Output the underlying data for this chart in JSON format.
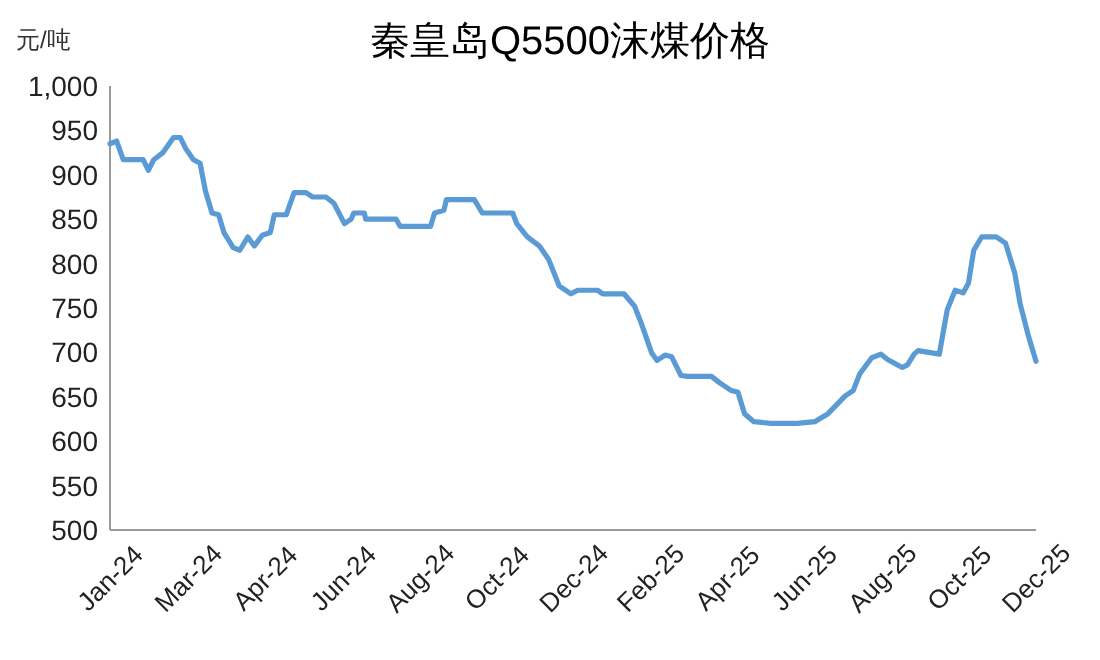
{
  "chart_data": {
    "type": "line",
    "title": "秦皇岛Q5500沫煤价格",
    "ylabel": "元/吨",
    "color": "#5b9bd5",
    "x": [
      "2024-01-02",
      "2024-01-07",
      "2024-01-12",
      "2024-01-27",
      "2024-01-31",
      "2024-02-04",
      "2024-02-11",
      "2024-02-19",
      "2024-02-24",
      "2024-02-28",
      "2024-03-05",
      "2024-03-10",
      "2024-03-14",
      "2024-03-19",
      "2024-03-24",
      "2024-03-28",
      "2024-04-04",
      "2024-04-09",
      "2024-04-15",
      "2024-04-20",
      "2024-04-26",
      "2024-05-02",
      "2024-05-05",
      "2024-05-14",
      "2024-05-20",
      "2024-05-29",
      "2024-06-03",
      "2024-06-13",
      "2024-06-19",
      "2024-06-27",
      "2024-07-02",
      "2024-07-04",
      "2024-07-12",
      "2024-07-13",
      "2024-08-05",
      "2024-08-08",
      "2024-08-31",
      "2024-09-03",
      "2024-09-10",
      "2024-09-12",
      "2024-10-03",
      "2024-10-09",
      "2024-11-01",
      "2024-11-04",
      "2024-11-12",
      "2024-11-21",
      "2024-11-28",
      "2024-12-06",
      "2024-12-15",
      "2024-12-20",
      "2025-01-04",
      "2025-01-08",
      "2025-01-24",
      "2025-02-01",
      "2025-02-06",
      "2025-02-14",
      "2025-02-18",
      "2025-02-24",
      "2025-03-01",
      "2025-03-08",
      "2025-03-13",
      "2025-03-31",
      "2025-04-06",
      "2025-04-15",
      "2025-04-20",
      "2025-04-25",
      "2025-05-02",
      "2025-05-15",
      "2025-06-04",
      "2025-06-17",
      "2025-06-27",
      "2025-07-10",
      "2025-07-16",
      "2025-07-21",
      "2025-07-30",
      "2025-08-06",
      "2025-08-11",
      "2025-08-22",
      "2025-08-26",
      "2025-08-31",
      "2025-09-03",
      "2025-09-19",
      "2025-09-25",
      "2025-10-01",
      "2025-10-07",
      "2025-10-11",
      "2025-10-15",
      "2025-10-21",
      "2025-11-01",
      "2025-11-08",
      "2025-11-15",
      "2025-11-19",
      "2025-11-25",
      "2025-12-01"
    ],
    "values": [
      935,
      938,
      917,
      917,
      905,
      917,
      925,
      942,
      942,
      930,
      917,
      913,
      882,
      857,
      855,
      835,
      818,
      815,
      830,
      820,
      832,
      835,
      855,
      855,
      880,
      880,
      875,
      875,
      868,
      845,
      850,
      857,
      857,
      850,
      850,
      842,
      842,
      857,
      860,
      872,
      872,
      857,
      857,
      845,
      830,
      820,
      805,
      775,
      766,
      770,
      770,
      766,
      766,
      752,
      733,
      699,
      691,
      697,
      695,
      674,
      673,
      673,
      666,
      657,
      655,
      631,
      622,
      620,
      620,
      622,
      631,
      651,
      657,
      676,
      694,
      698,
      692,
      683,
      686,
      698,
      702,
      698,
      748,
      770,
      767,
      778,
      815,
      830,
      830,
      823,
      789,
      755,
      720,
      690
    ],
    "xlim": [
      "2024-01-02",
      "2025-12-01"
    ],
    "xticks": [
      {
        "value": "2024-01-02",
        "label": "Jan-24"
      },
      {
        "value": "2024-03-01",
        "label": "Mar-24"
      },
      {
        "value": "2024-04-28",
        "label": "Apr-24"
      },
      {
        "value": "2024-06-26",
        "label": "Jun-24"
      },
      {
        "value": "2024-08-23",
        "label": "Aug-24"
      },
      {
        "value": "2024-10-20",
        "label": "Oct-24"
      },
      {
        "value": "2024-12-17",
        "label": "Dec-24"
      },
      {
        "value": "2025-02-13",
        "label": "Feb-25"
      },
      {
        "value": "2025-04-12",
        "label": "Apr-25"
      },
      {
        "value": "2025-06-09",
        "label": "Jun-25"
      },
      {
        "value": "2025-08-07",
        "label": "Aug-25"
      },
      {
        "value": "2025-10-04",
        "label": "Oct-25"
      },
      {
        "value": "2025-12-01",
        "label": "Dec-25"
      }
    ],
    "ylim": [
      500,
      1000
    ],
    "yticks": [
      500,
      550,
      600,
      650,
      700,
      750,
      800,
      850,
      900,
      950,
      {
        "value": 1000,
        "label": "1,000"
      }
    ]
  }
}
